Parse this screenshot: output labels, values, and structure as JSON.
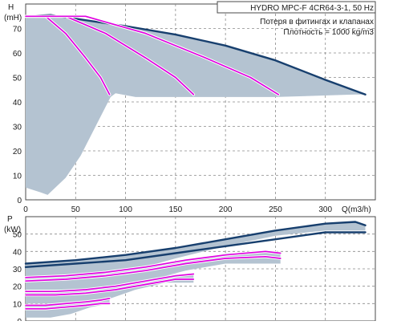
{
  "chart_data": [
    {
      "type": "line",
      "title": "HYDRO MPC-F 4CR64-3-1, 50 Hz",
      "annotations": [
        "Потеря в фитингах и клапанах",
        "Плотность = 1000 kg/m3"
      ],
      "ylabel_main": "H",
      "ylabel_unit": "(mH)",
      "xlabel": "Q(m3/h)",
      "xlim": [
        0,
        350
      ],
      "ylim": [
        0,
        80
      ],
      "x_ticks": [
        0,
        50,
        100,
        150,
        200,
        250,
        300
      ],
      "y_ticks": [
        0,
        10,
        20,
        30,
        40,
        50,
        60,
        70
      ],
      "grid": true,
      "envelope": {
        "upper": [
          [
            0,
            75
          ],
          [
            25,
            75.5
          ],
          [
            50,
            74
          ],
          [
            100,
            71
          ],
          [
            150,
            67.5
          ],
          [
            200,
            63
          ],
          [
            250,
            57
          ],
          [
            300,
            49
          ],
          [
            340,
            43
          ]
        ],
        "lower": [
          [
            330,
            43
          ],
          [
            250,
            42
          ],
          [
            200,
            42
          ],
          [
            150,
            42
          ],
          [
            110,
            42
          ],
          [
            90,
            43.5
          ],
          [
            85,
            42
          ],
          [
            70,
            30
          ],
          [
            55,
            18
          ],
          [
            40,
            9
          ],
          [
            22,
            2
          ],
          [
            15,
            3
          ],
          [
            0,
            5
          ]
        ]
      },
      "series": [
        {
          "color": "#173f6e",
          "style": "dark",
          "x": [
            0,
            25,
            50,
            100,
            150,
            200,
            250,
            300,
            340
          ],
          "y": [
            75,
            75.5,
            74,
            71,
            67.5,
            63,
            57,
            49,
            43
          ]
        },
        {
          "color": "#e000e0",
          "style": "magenta",
          "x": [
            0,
            20,
            40,
            60,
            75,
            84
          ],
          "y": [
            75,
            75,
            68,
            58,
            50,
            43
          ]
        },
        {
          "color": "#e000e0",
          "style": "magenta",
          "x": [
            0,
            40,
            80,
            120,
            150,
            168
          ],
          "y": [
            75,
            75,
            68,
            58,
            50,
            43
          ]
        },
        {
          "color": "#e000e0",
          "style": "magenta",
          "x": [
            0,
            60,
            120,
            180,
            225,
            253
          ],
          "y": [
            75,
            75,
            68,
            58,
            50,
            43
          ]
        }
      ]
    },
    {
      "type": "line",
      "ylabel_main": "P",
      "ylabel_unit": "(kW)",
      "xlim": [
        0,
        350
      ],
      "ylim": [
        0,
        60
      ],
      "y_ticks": [
        0,
        10,
        20,
        30,
        40,
        50
      ],
      "grid": true,
      "bands": [
        {
          "upper": [
            [
              0,
              33
            ],
            [
              50,
              35
            ],
            [
              100,
              38
            ],
            [
              150,
              42
            ],
            [
              200,
              47
            ],
            [
              250,
              52
            ],
            [
              300,
              56
            ],
            [
              330,
              57
            ],
            [
              340,
              55
            ]
          ],
          "lower": [
            [
              340,
              52
            ],
            [
              300,
              52
            ],
            [
              250,
              49
            ],
            [
              200,
              43
            ],
            [
              150,
              36
            ],
            [
              100,
              28
            ],
            [
              50,
              25
            ],
            [
              0,
              24
            ]
          ]
        },
        {
          "upper": [
            [
              0,
              25
            ],
            [
              40,
              26
            ],
            [
              80,
              28
            ],
            [
              120,
              31
            ],
            [
              160,
              35
            ],
            [
              200,
              39
            ],
            [
              240,
              40
            ],
            [
              255,
              39
            ]
          ],
          "lower": [
            [
              255,
              33
            ],
            [
              200,
              33
            ],
            [
              160,
              29
            ],
            [
              120,
              23
            ],
            [
              80,
              19
            ],
            [
              40,
              18
            ],
            [
              0,
              18
            ]
          ]
        },
        {
          "upper": [
            [
              0,
              17
            ],
            [
              30,
              17
            ],
            [
              60,
              18
            ],
            [
              90,
              20
            ],
            [
              120,
              24
            ],
            [
              150,
              27
            ],
            [
              168,
              27
            ]
          ],
          "lower": [
            [
              168,
              22
            ],
            [
              140,
              22
            ],
            [
              110,
              18
            ],
            [
              80,
              12
            ],
            [
              50,
              10
            ],
            [
              20,
              10
            ],
            [
              0,
              10
            ]
          ]
        },
        {
          "upper": [
            [
              0,
              9
            ],
            [
              20,
              9
            ],
            [
              40,
              10
            ],
            [
              60,
              11
            ],
            [
              75,
              13
            ],
            [
              84,
              14
            ]
          ],
          "lower": [
            [
              84,
              10
            ],
            [
              65,
              8
            ],
            [
              45,
              4
            ],
            [
              25,
              2
            ],
            [
              10,
              2
            ],
            [
              0,
              2
            ]
          ]
        }
      ],
      "series": [
        {
          "color": "#173f6e",
          "style": "dark",
          "x": [
            0,
            50,
            100,
            150,
            200,
            250,
            300,
            330,
            340
          ],
          "y": [
            33,
            35,
            38,
            42,
            47,
            52,
            56,
            57,
            55
          ]
        },
        {
          "color": "#173f6e",
          "style": "dark",
          "x": [
            0,
            50,
            100,
            150,
            200,
            250,
            300,
            340
          ],
          "y": [
            31,
            33,
            35,
            39,
            43,
            47,
            51,
            51
          ]
        },
        {
          "color": "#e000e0",
          "style": "magenta",
          "x": [
            0,
            40,
            80,
            120,
            160,
            200,
            240,
            255
          ],
          "y": [
            25,
            26,
            28,
            31,
            35,
            38,
            40,
            39
          ]
        },
        {
          "color": "#e000e0",
          "style": "magenta",
          "x": [
            0,
            40,
            80,
            120,
            160,
            200,
            240,
            255
          ],
          "y": [
            23,
            24,
            26,
            29,
            33,
            36,
            37,
            36
          ]
        },
        {
          "color": "#e000e0",
          "style": "magenta",
          "x": [
            0,
            30,
            60,
            90,
            120,
            150,
            168
          ],
          "y": [
            17,
            17,
            18,
            20,
            23,
            26,
            27
          ]
        },
        {
          "color": "#e000e0",
          "style": "magenta",
          "x": [
            0,
            30,
            60,
            90,
            120,
            150,
            168
          ],
          "y": [
            15,
            15,
            16,
            18,
            21,
            24,
            24
          ]
        },
        {
          "color": "#e000e0",
          "style": "magenta",
          "x": [
            0,
            20,
            40,
            60,
            75,
            84
          ],
          "y": [
            9,
            9,
            10,
            11,
            12,
            13
          ]
        },
        {
          "color": "#e000e0",
          "style": "magenta",
          "x": [
            0,
            20,
            40,
            60,
            75,
            84
          ],
          "y": [
            7,
            7,
            8,
            9,
            10,
            10
          ]
        }
      ]
    }
  ]
}
